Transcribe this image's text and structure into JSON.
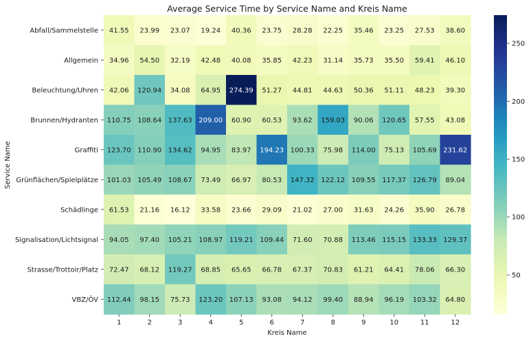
{
  "chart_data": {
    "type": "heatmap",
    "title": "Average Service Time by Service Name and Kreis Name",
    "xlabel": "Kreis Name",
    "ylabel": "Service Name",
    "x_categories": [
      "1",
      "2",
      "3",
      "4",
      "5",
      "6",
      "7",
      "8",
      "9",
      "10",
      "11",
      "12"
    ],
    "y_categories": [
      "Abfall/Sammelstelle",
      "Allgemein",
      "Beleuchtung/Uhren",
      "Brunnen/Hydranten",
      "Graffiti",
      "Grünflächen/Spielplätze",
      "Schädlinge",
      "Signalisation/Lichtsignal",
      "Strasse/Trottoir/Platz",
      "VBZ/ÖV"
    ],
    "values": [
      [
        41.55,
        23.99,
        23.07,
        19.24,
        40.36,
        23.75,
        28.28,
        22.25,
        35.46,
        23.25,
        27.53,
        38.6
      ],
      [
        34.96,
        54.5,
        32.19,
        42.48,
        40.08,
        35.85,
        42.23,
        31.14,
        35.73,
        35.5,
        59.41,
        46.1
      ],
      [
        42.06,
        120.94,
        34.08,
        64.95,
        274.39,
        51.27,
        44.81,
        44.63,
        50.36,
        51.11,
        48.23,
        39.3
      ],
      [
        110.75,
        108.64,
        137.63,
        209.0,
        60.9,
        60.53,
        93.62,
        159.03,
        90.06,
        120.65,
        57.55,
        43.08
      ],
      [
        123.7,
        110.9,
        134.62,
        94.95,
        83.97,
        194.23,
        100.33,
        75.98,
        114.0,
        75.13,
        105.69,
        231.62
      ],
      [
        101.03,
        105.49,
        108.67,
        73.49,
        66.97,
        80.53,
        147.32,
        122.12,
        109.55,
        117.37,
        126.79,
        89.04
      ],
      [
        61.53,
        21.16,
        16.12,
        33.58,
        23.66,
        29.09,
        21.02,
        27.0,
        31.63,
        24.26,
        35.9,
        26.78
      ],
      [
        94.05,
        97.4,
        105.21,
        108.97,
        119.21,
        109.44,
        71.6,
        70.88,
        113.46,
        115.15,
        133.33,
        129.37
      ],
      [
        72.47,
        68.12,
        119.27,
        68.85,
        65.65,
        66.78,
        67.37,
        70.83,
        61.21,
        64.41,
        78.06,
        66.3
      ],
      [
        112.44,
        98.15,
        75.73,
        123.2,
        107.13,
        93.08,
        94.12,
        99.4,
        88.94,
        96.19,
        103.32,
        64.8
      ]
    ],
    "colormap": "YlGnBu",
    "color_range": [
      16.12,
      274.39
    ],
    "colorbar_ticks": [
      50,
      100,
      150,
      200,
      250
    ],
    "annotations": true,
    "grid": false
  }
}
